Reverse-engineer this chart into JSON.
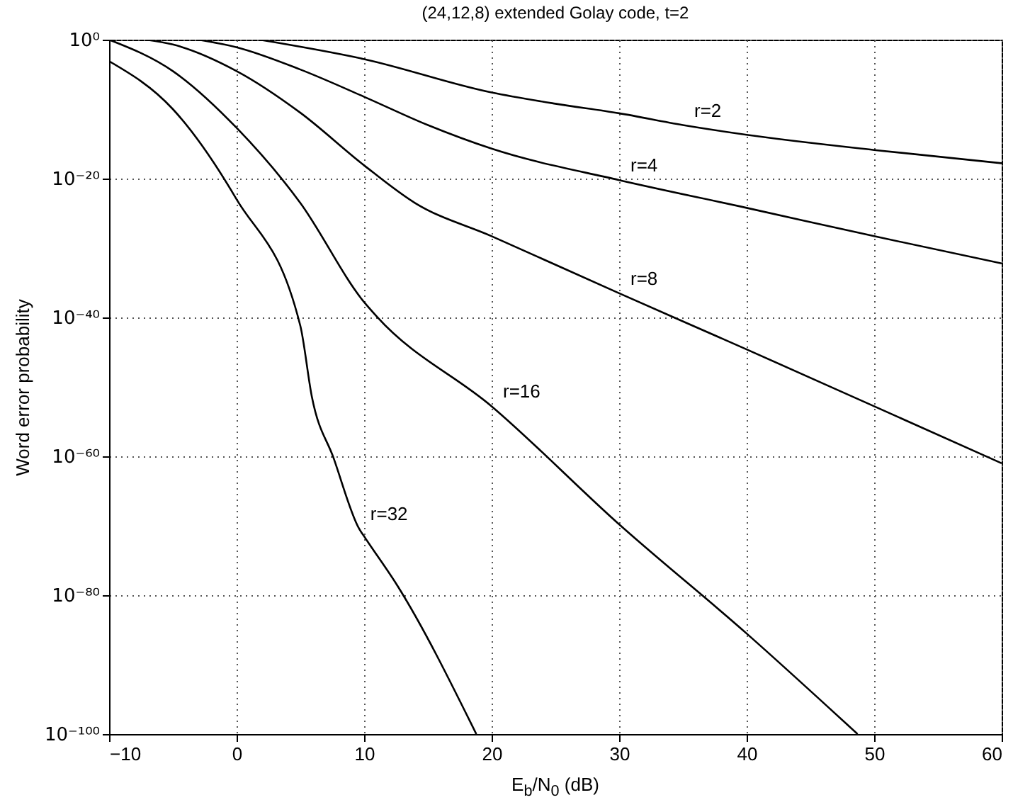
{
  "chart_data": {
    "type": "line",
    "title": "(24,12,8) extended Golay code, t=2",
    "xlabel": "E$_{b}$/N$_{0}$ (dB)",
    "ylabel": "Word error probability",
    "xlim": [
      -10,
      60
    ],
    "xticks": [
      -10,
      0,
      10,
      20,
      30,
      40,
      50,
      60
    ],
    "ylim": [
      1e-100,
      1
    ],
    "yticks": [
      {
        "value": 1e-100,
        "label": "10⁻¹⁰⁰"
      },
      {
        "value": 1e-80,
        "label": "10⁻⁸⁰"
      },
      {
        "value": 1e-60,
        "label": "10⁻⁶⁰"
      },
      {
        "value": 1e-40,
        "label": "10⁻⁴⁰"
      },
      {
        "value": 1e-20,
        "label": "10⁻²⁰"
      },
      {
        "value": 1,
        "label": "10⁰"
      }
    ],
    "log": "y",
    "grid": true,
    "series": [
      {
        "name": "r=2",
        "color": "#000000",
        "x": [
          1.8,
          10,
          20,
          25,
          30,
          35,
          40,
          50,
          60
        ],
        "values": [
          1,
          0.0016,
          2.5e-08,
          6e-10,
          2.5e-11,
          5e-13,
          2e-14,
          1.3e-16,
          1.6e-18
        ]
      },
      {
        "name": "r=4",
        "color": "#000000",
        "x": [
          -3,
          0,
          5,
          10,
          15,
          20,
          30,
          40,
          50,
          60
        ],
        "values": [
          1,
          0.08,
          5e-05,
          6e-09,
          5e-13,
          2e-16,
          6e-21,
          6e-25,
          5e-29,
          6e-33
        ]
      },
      {
        "name": "r=8",
        "color": "#000000",
        "x": [
          -7.1,
          -5,
          0,
          5,
          10,
          14,
          20,
          30,
          40,
          50,
          60
        ],
        "values": [
          1,
          0.2,
          3e-05,
          3e-11,
          8e-19,
          3e-24,
          5e-29,
          3e-37,
          2.5e-45,
          1.6e-53,
          1e-61
        ]
      },
      {
        "name": "r=16",
        "color": "#000000",
        "x": [
          -10,
          -5,
          0,
          5,
          10,
          11,
          20,
          30,
          40,
          48.7
        ],
        "values": [
          1,
          3e-05,
          2e-13,
          3e-24,
          1.6e-38,
          1.3e-40,
          1.6e-53,
          1.6e-70,
          3e-86,
          1e-100
        ]
      },
      {
        "name": "r=32",
        "color": "#000000",
        "x": [
          -10,
          -5,
          0,
          5,
          5.9,
          7.6,
          9.6,
          10.1,
          12.6,
          18.8
        ],
        "values": [
          0.0008,
          1e-10,
          1e-23,
          6e-42,
          4e-52,
          6e-61,
          4e-71,
          1.6e-72,
          2.5e-79,
          1e-100
        ]
      }
    ]
  }
}
